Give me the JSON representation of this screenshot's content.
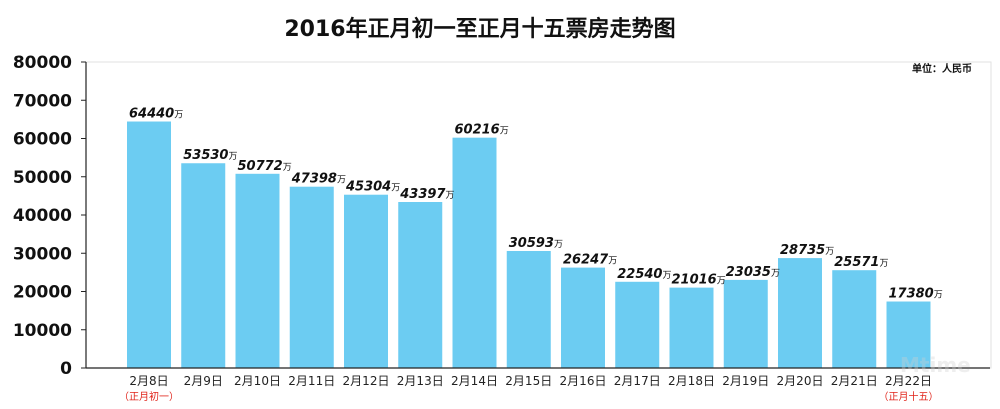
{
  "chart_data": {
    "type": "bar",
    "title": "2016年正月初一至正月十五票房走势图",
    "unit_label": "单位：人民币",
    "value_suffix": "万",
    "ylim": [
      0,
      80000
    ],
    "yticks": [
      "0",
      "10000",
      "20000",
      "30000",
      "40000",
      "50000",
      "60000",
      "70000",
      "80000"
    ],
    "categories": [
      "2月8日",
      "2月9日",
      "2月10日",
      "2月11日",
      "2月12日",
      "2月13日",
      "2月14日",
      "2月15日",
      "2月16日",
      "2月17日",
      "2月18日",
      "2月19日",
      "2月20日",
      "2月21日",
      "2月22日"
    ],
    "values": [
      64440,
      53530,
      50772,
      47398,
      45304,
      43397,
      60216,
      30593,
      26247,
      22540,
      21016,
      23035,
      28735,
      25571,
      17380
    ],
    "value_labels": [
      "64440",
      "53530",
      "50772",
      "47398",
      "45304",
      "43397",
      "60216",
      "30593",
      "26247",
      "22540",
      "21016",
      "23035",
      "28735",
      "25571",
      "17380"
    ],
    "notes": [
      {
        "category_index": 0,
        "text": "（正月初一）"
      },
      {
        "category_index": 14,
        "text": "（正月十五）"
      }
    ],
    "bar_color": "#6cccf2",
    "grid": false,
    "watermark": "Mtime 时光网"
  }
}
